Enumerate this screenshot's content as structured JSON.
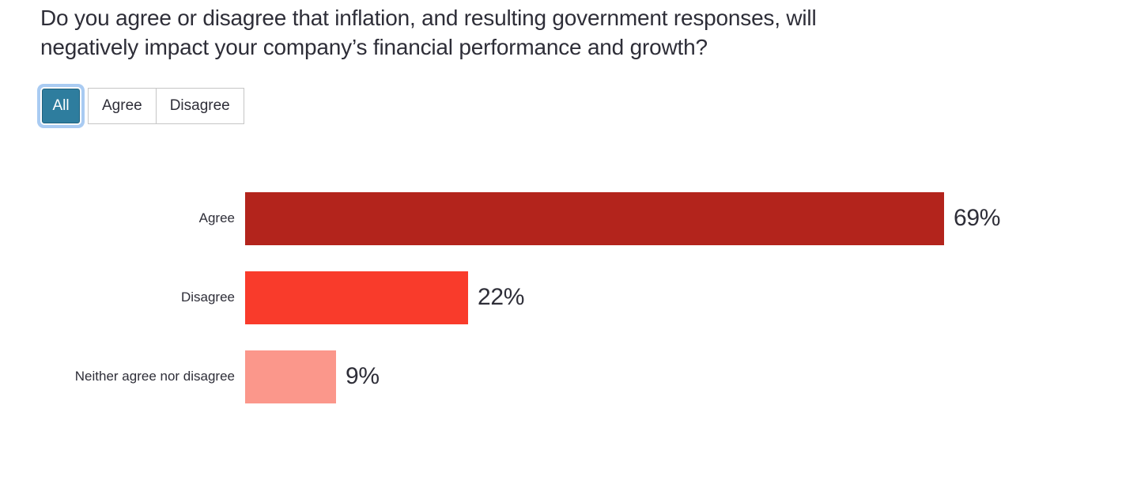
{
  "title": {
    "line1": "Do you agree or disagree that inflation, and resulting government responses, will",
    "line2": "negatively impact your company’s financial performance and growth?"
  },
  "filters": {
    "items": [
      {
        "label": "All",
        "active": true
      },
      {
        "label": "Agree",
        "active": false
      },
      {
        "label": "Disagree",
        "active": false
      }
    ]
  },
  "colors": {
    "text": "#2e2e38",
    "active_filter_bg": "#2e7d9e",
    "active_filter_border": "#1f627f",
    "active_filter_ring": "#a9cbf2",
    "inactive_filter_border": "#c6c6c6"
  },
  "chart_data": {
    "type": "bar",
    "orientation": "horizontal",
    "title": "Do you agree or disagree that inflation, and resulting government responses, will negatively impact your company’s financial performance and growth?",
    "categories": [
      "Agree",
      "Disagree",
      "Neither agree nor disagree"
    ],
    "values": [
      69,
      22,
      9
    ],
    "value_labels": [
      "69%",
      "22%",
      "9%"
    ],
    "bar_colors": [
      "#b3241c",
      "#f93b2b",
      "#fb978b"
    ],
    "xlabel": "",
    "ylabel": "",
    "xlim": [
      0,
      100
    ],
    "grid": false,
    "legend": false,
    "axis_visible": false,
    "data_label_position": "outside-end"
  }
}
